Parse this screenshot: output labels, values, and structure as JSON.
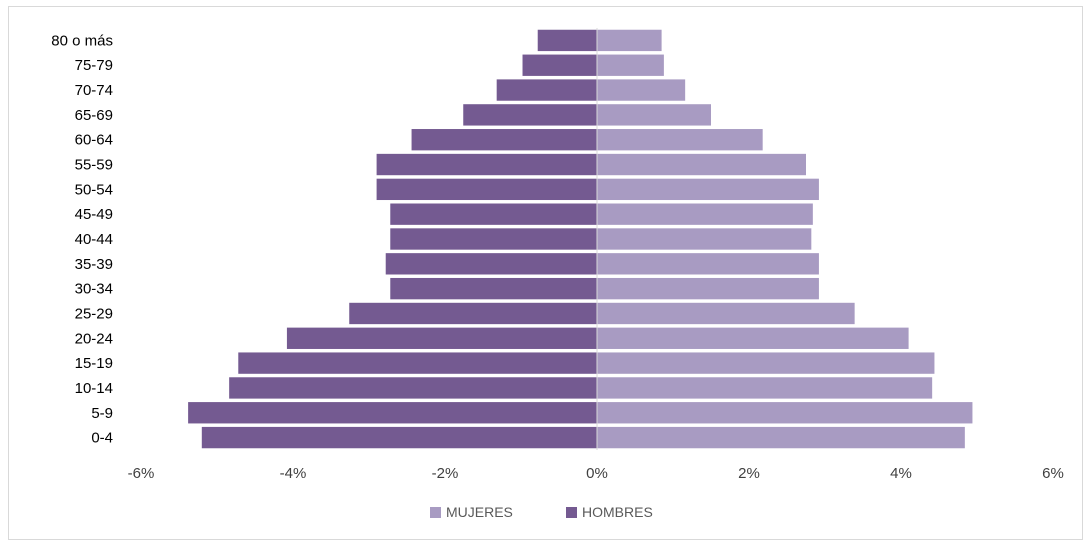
{
  "chart_data": {
    "type": "bar",
    "orientation": "horizontal",
    "categories": [
      "80 o más",
      "75-79",
      "70-74",
      "65-69",
      "60-64",
      "55-59",
      "50-54",
      "45-49",
      "40-44",
      "35-39",
      "30-34",
      "25-29",
      "20-24",
      "15-19",
      "10-14",
      "5-9",
      "0-4"
    ],
    "series": [
      {
        "name": "MUJERES",
        "color": "#a89bc2",
        "values": [
          0.85,
          0.88,
          1.16,
          1.5,
          2.18,
          2.75,
          2.92,
          2.84,
          2.82,
          2.92,
          2.92,
          3.39,
          4.1,
          4.44,
          4.41,
          4.94,
          4.84
        ]
      },
      {
        "name": "HOMBRES",
        "color": "#745a91",
        "values": [
          -0.78,
          -0.98,
          -1.32,
          -1.76,
          -2.44,
          -2.9,
          -2.9,
          -2.72,
          -2.72,
          -2.78,
          -2.72,
          -3.26,
          -4.08,
          -4.72,
          -4.84,
          -5.38,
          -5.2
        ]
      }
    ],
    "xlim": [
      -6,
      6
    ],
    "xticks": [
      -6,
      -4,
      -2,
      0,
      2,
      4,
      6
    ],
    "xtick_labels": [
      "-6%",
      "-4%",
      "-2%",
      "0%",
      "2%",
      "4%",
      "6%"
    ],
    "title": "",
    "xlabel": "",
    "ylabel": "",
    "grid": false,
    "legend": {
      "position": "bottom",
      "items": [
        "MUJERES",
        "HOMBRES"
      ]
    }
  }
}
